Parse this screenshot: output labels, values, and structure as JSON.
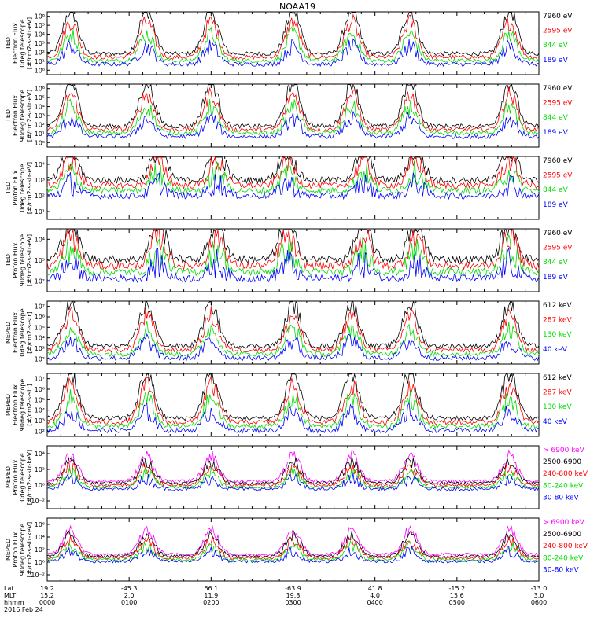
{
  "chart_data": {
    "type": "line",
    "title": "NOAA19",
    "x_tick_rows": {
      "labels": [
        "Lat",
        "MLT",
        "hhmm",
        "2016 Feb 24"
      ],
      "columns": [
        [
          "19.2",
          "15.2",
          "0000"
        ],
        [
          "-45.3",
          "2.0",
          "0100"
        ],
        [
          "66.1",
          "11.9",
          "0200"
        ],
        [
          "-63.9",
          "19.3",
          "0300"
        ],
        [
          "41.8",
          "4.0",
          "0400"
        ],
        [
          "-15.2",
          "15.6",
          "0500"
        ],
        [
          "-13.0",
          "3.0",
          "0600"
        ]
      ]
    },
    "x_range_hhmm": [
      "0000",
      "0600"
    ],
    "panels": [
      {
        "ylabel": [
          "TED",
          "Electron Flux",
          "0deg telescope",
          "[#/cm2-s-str-eV]"
        ],
        "ytick_labels": [
          "10⁰",
          "10¹",
          "10²",
          "10³",
          "10⁴",
          "10⁵",
          "10⁶"
        ],
        "ylog": [
          0,
          6
        ],
        "series": [
          {
            "name": "7960 eV",
            "color": "#000000"
          },
          {
            "name": "2595 eV",
            "color": "#ff0000"
          },
          {
            "name": "844 eV",
            "color": "#00dd00"
          },
          {
            "name": "189 eV",
            "color": "#0000ff"
          }
        ],
        "base": 1.0,
        "spikes": [
          0.4,
          1.7,
          2.8,
          4.2,
          5.2,
          6.2,
          7.9
        ],
        "spike_height": 4.2
      },
      {
        "ylabel": [
          "TED",
          "Electron Flux",
          "90deg telescope",
          "[#/cm2-s-str-eV]"
        ],
        "ytick_labels": [
          "10⁰",
          "10¹",
          "10²",
          "10³",
          "10⁴",
          "10⁵",
          "10⁶"
        ],
        "ylog": [
          0,
          6
        ],
        "series": [
          {
            "name": "7960 eV",
            "color": "#000000"
          },
          {
            "name": "2595 eV",
            "color": "#ff0000"
          },
          {
            "name": "844 eV",
            "color": "#00dd00"
          },
          {
            "name": "189 eV",
            "color": "#0000ff"
          }
        ],
        "base": 1.0,
        "spikes": [
          0.4,
          1.7,
          2.8,
          4.2,
          5.2,
          6.2,
          7.9
        ],
        "spike_height": 4.2
      },
      {
        "ylabel": [
          "TED",
          "Proton Flux",
          "0deg telescope",
          "[#/cm2-s-str-eV]"
        ],
        "ytick_labels": [
          "10¹",
          "10²",
          "10³",
          "10⁴"
        ],
        "ylog": [
          0.5,
          4.5
        ],
        "series": [
          {
            "name": "7960 eV",
            "color": "#000000"
          },
          {
            "name": "2595 eV",
            "color": "#ff0000"
          },
          {
            "name": "844 eV",
            "color": "#00dd00"
          },
          {
            "name": "189 eV",
            "color": "#0000ff"
          }
        ],
        "base": 2.0,
        "spikes": [
          0.4,
          1.9,
          2.9,
          4.1,
          5.4,
          6.3,
          7.9
        ],
        "spike_height": 2.0
      },
      {
        "ylabel": [
          "TED",
          "Proton Flux",
          "90deg telescope",
          "[#/cm2-s-str-eV]"
        ],
        "ytick_labels": [
          "10²",
          "10³",
          "10⁴"
        ],
        "ylog": [
          1.3,
          4.6
        ],
        "series": [
          {
            "name": "7960 eV",
            "color": "#000000"
          },
          {
            "name": "2595 eV",
            "color": "#ff0000"
          },
          {
            "name": "844 eV",
            "color": "#00dd00"
          },
          {
            "name": "189 eV",
            "color": "#0000ff"
          }
        ],
        "base": 2.0,
        "spikes": [
          0.4,
          1.9,
          2.9,
          4.1,
          5.4,
          6.3,
          7.9
        ],
        "spike_height": 2.0
      },
      {
        "ylabel": [
          "MEPED",
          "Electron Flux",
          "0deg telescope",
          "[#/cm2-s-str]"
        ],
        "ytick_labels": [
          "10²",
          "10³",
          "10⁴",
          "10⁵",
          "10⁶",
          "10⁷"
        ],
        "ylog": [
          1.8,
          7
        ],
        "series": [
          {
            "name": "612 keV",
            "color": "#000000"
          },
          {
            "name": "287 keV",
            "color": "#ff0000"
          },
          {
            "name": "130 keV",
            "color": "#00dd00"
          },
          {
            "name": "40 keV",
            "color": "#0000ff"
          }
        ],
        "base": 2.3,
        "spikes": [
          0.4,
          1.7,
          2.8,
          4.2,
          5.2,
          6.2,
          7.9
        ],
        "spike_height": 3.5
      },
      {
        "ylabel": [
          "MEPED",
          "Electron Flux",
          "90deg telescope",
          "[#/cm2-s-str]"
        ],
        "ytick_labels": [
          "10²",
          "10³",
          "10⁴",
          "10⁵",
          "10⁶",
          "10⁷"
        ],
        "ylog": [
          1.8,
          7
        ],
        "series": [
          {
            "name": "612 keV",
            "color": "#000000"
          },
          {
            "name": "287 keV",
            "color": "#ff0000"
          },
          {
            "name": "130 keV",
            "color": "#00dd00"
          },
          {
            "name": "40 keV",
            "color": "#0000ff"
          }
        ],
        "base": 2.3,
        "spikes": [
          0.4,
          1.7,
          2.8,
          4.2,
          5.2,
          6.2,
          7.9
        ],
        "spike_height": 3.8
      },
      {
        "ylabel": [
          "MEPED",
          "Proton Flux",
          "0deg telescope",
          "[#/cm2-s-str-keV]"
        ],
        "ytick_labels": [
          "10⁻²",
          "10⁰",
          "10²",
          "10⁴"
        ],
        "ylog": [
          -2.5,
          5.5
        ],
        "series": [
          {
            "name": "> 6900 keV",
            "color": "#ff00ff"
          },
          {
            "name": "2500-6900",
            "color": "#000000"
          },
          {
            "name": "240-800 keV",
            "color": "#ff0000"
          },
          {
            "name": "80-240 keV",
            "color": "#00dd00"
          },
          {
            "name": "30-80 keV",
            "color": "#0000ff"
          }
        ],
        "base": 0.0,
        "spikes": [
          0.4,
          1.7,
          2.8,
          4.2,
          5.2,
          6.2,
          7.9
        ],
        "spike_height": 3.2
      },
      {
        "ylabel": [
          "MEPED",
          "Proton Flux",
          "90deg telescope",
          "[#/cm2-s-str-keV]"
        ],
        "ytick_labels": [
          "10⁻²",
          "10⁰",
          "10²",
          "10⁴",
          "10⁶"
        ],
        "ylog": [
          -2.5,
          6.5
        ],
        "series": [
          {
            "name": "> 6900 keV",
            "color": "#ff00ff"
          },
          {
            "name": "2500-6900",
            "color": "#000000"
          },
          {
            "name": "240-800 keV",
            "color": "#ff0000"
          },
          {
            "name": "80-240 keV",
            "color": "#00dd00"
          },
          {
            "name": "30-80 keV",
            "color": "#0000ff"
          }
        ],
        "base": 0.3,
        "spikes": [
          0.4,
          1.7,
          2.8,
          4.2,
          5.2,
          6.2,
          7.9
        ],
        "spike_height": 3.5
      }
    ],
    "grid": false,
    "legend_placement": "right"
  }
}
